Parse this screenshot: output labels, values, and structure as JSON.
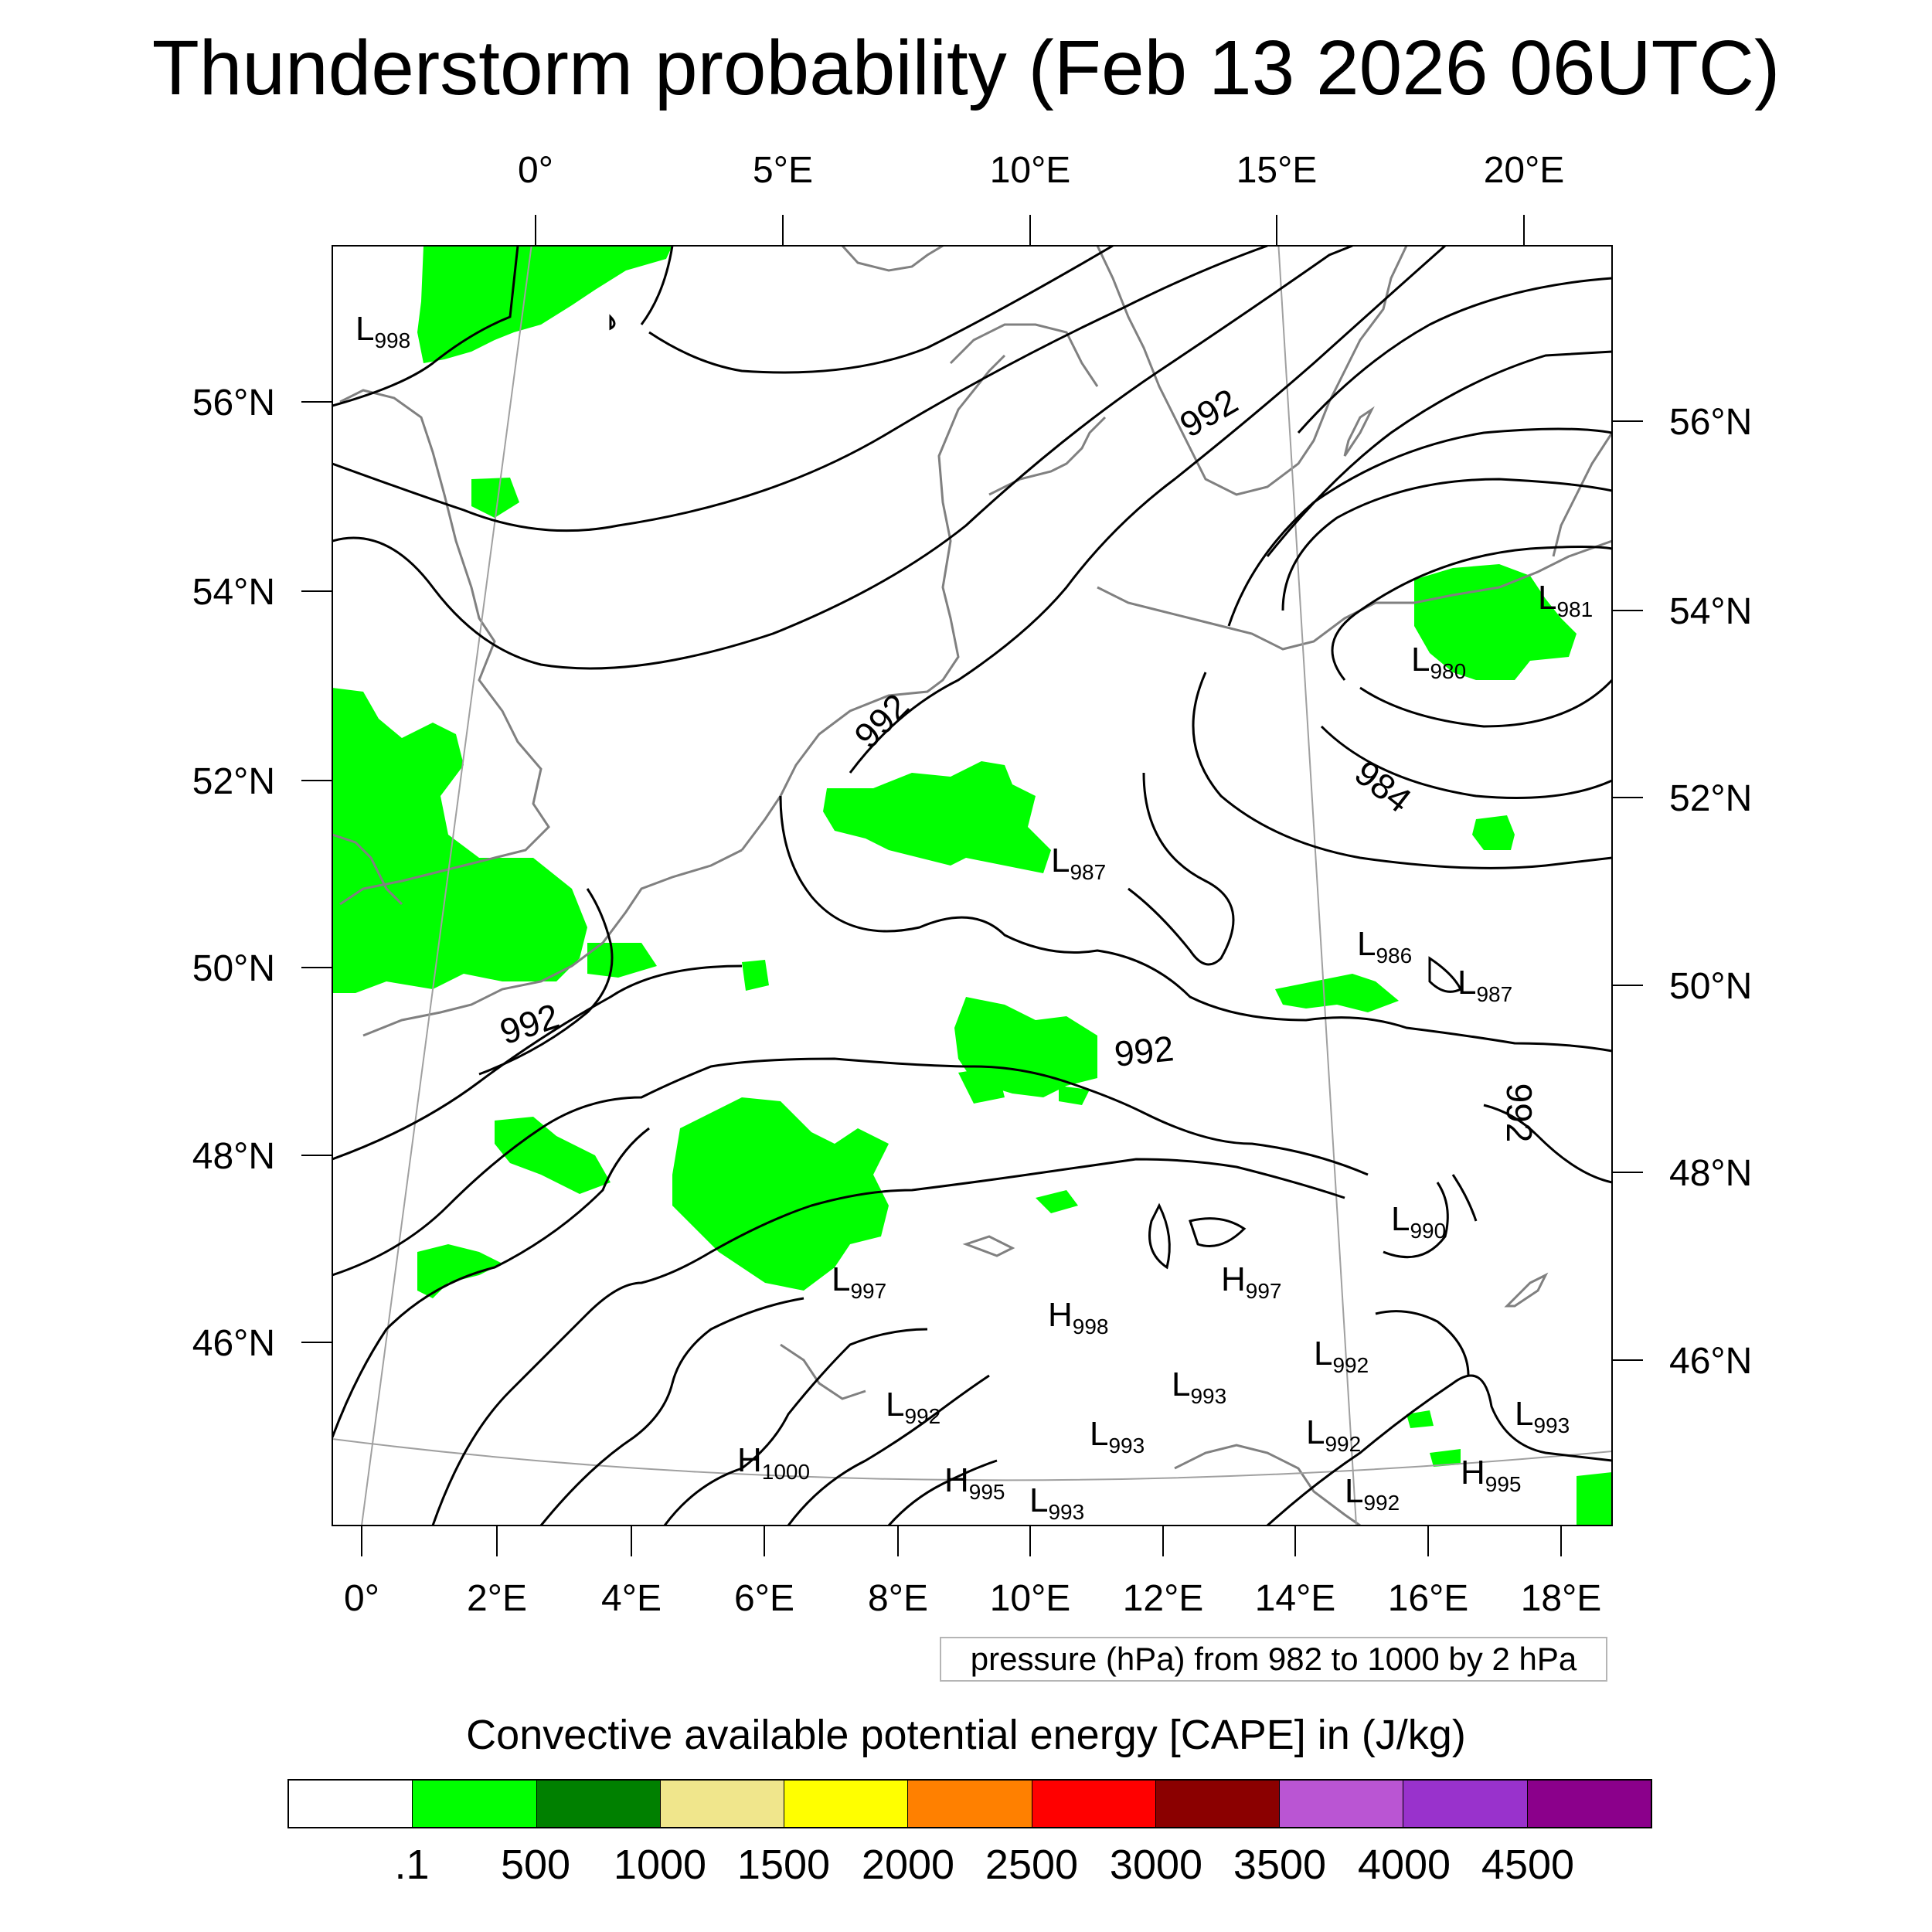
{
  "title": "Thunderstorm probability (Feb 13 2026 06UTC)",
  "top_lon_labels": [
    "0°",
    "5°E",
    "10°E",
    "15°E",
    "20°E"
  ],
  "bottom_lon_labels": [
    "0°",
    "2°E",
    "4°E",
    "6°E",
    "8°E",
    "10°E",
    "12°E",
    "14°E",
    "16°E",
    "18°E"
  ],
  "left_lat_labels": [
    "56°N",
    "54°N",
    "52°N",
    "50°N",
    "48°N",
    "46°N"
  ],
  "right_lat_labels": [
    "56°N",
    "54°N",
    "52°N",
    "50°N",
    "48°N",
    "46°N"
  ],
  "contour_labels": [
    "992",
    "992",
    "992",
    "992",
    "984",
    "992"
  ],
  "pressure_centers": [
    {
      "type": "L",
      "value": "998"
    },
    {
      "type": "L",
      "value": "981"
    },
    {
      "type": "L",
      "value": "980"
    },
    {
      "type": "L",
      "value": "987"
    },
    {
      "type": "L",
      "value": "986"
    },
    {
      "type": "L",
      "value": "987"
    },
    {
      "type": "L",
      "value": "990"
    },
    {
      "type": "L",
      "value": "997"
    },
    {
      "type": "H",
      "value": "997"
    },
    {
      "type": "H",
      "value": "998"
    },
    {
      "type": "L",
      "value": "992"
    },
    {
      "type": "L",
      "value": "993"
    },
    {
      "type": "L",
      "value": "992"
    },
    {
      "type": "L",
      "value": "993"
    },
    {
      "type": "L",
      "value": "992"
    },
    {
      "type": "L",
      "value": "993"
    },
    {
      "type": "H",
      "value": "1000"
    },
    {
      "type": "H",
      "value": "995"
    },
    {
      "type": "L",
      "value": "993"
    },
    {
      "type": "H",
      "value": "995"
    },
    {
      "type": "L",
      "value": "992"
    }
  ],
  "contour_note": "pressure (hPa) from 982 to 1000 by 2 hPa",
  "colorbar": {
    "title": "Convective available potential energy [CAPE] in (J/kg)",
    "labels": [
      ".1",
      "500",
      "1000",
      "1500",
      "2000",
      "2500",
      "3000",
      "3500",
      "4000",
      "4500"
    ],
    "colors": [
      "#ffffff",
      "#00ff00",
      "#008000",
      "#f0e68c",
      "#ffff00",
      "#ff8000",
      "#ff0000",
      "#8b0000",
      "#ba55d3",
      "#9932cc",
      "#8b008b"
    ]
  },
  "colors": {
    "cape_low": "#00ff00",
    "coastline": "#808080",
    "isobar": "#000000",
    "graticule": "#a0a0a0"
  }
}
